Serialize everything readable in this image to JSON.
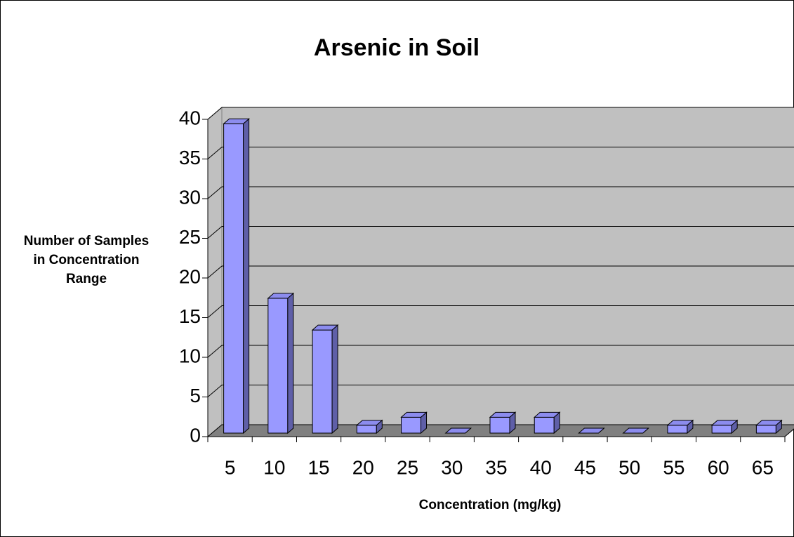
{
  "chart_data": {
    "type": "bar3d",
    "title": "Arsenic in Soil",
    "xlabel": "Concentration (mg/kg)",
    "ylabel": "Number of Samples in Concentration Range",
    "categories": [
      "5",
      "10",
      "15",
      "20",
      "25",
      "30",
      "35",
      "40",
      "45",
      "50",
      "55",
      "60",
      "65"
    ],
    "values": [
      39,
      17,
      13,
      1,
      2,
      0,
      2,
      2,
      0,
      0,
      1,
      1,
      1
    ],
    "color": "#9999ff",
    "ylim": [
      0,
      40
    ],
    "yticks": [
      0,
      5,
      10,
      15,
      20,
      25,
      30,
      35,
      40
    ],
    "grid": true
  }
}
